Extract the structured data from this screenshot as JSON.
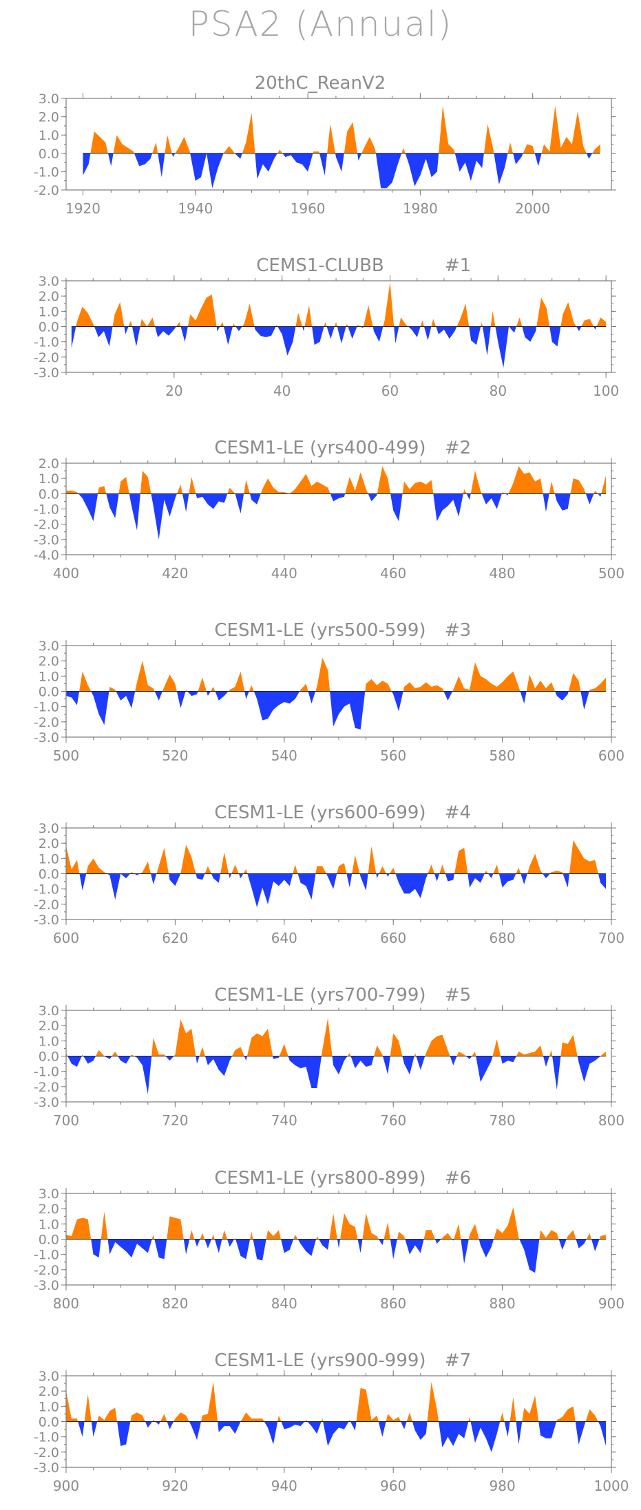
{
  "title": "PSA2 (Annual)",
  "colors": {
    "positive": "#ff8000",
    "negative": "#1e3cff",
    "axis": "#7a7a7a",
    "text": "#8c8c8c"
  },
  "chart_data": [
    {
      "type": "area",
      "title": "20thC_ReanV2",
      "x_start": 1920,
      "x_end": 2012,
      "xlim": [
        1917,
        2014
      ],
      "ylim": [
        -2.0,
        3.0
      ],
      "xticks": [
        1920,
        1940,
        1960,
        1980,
        2000
      ],
      "yticks": [
        "3.0",
        "2.0",
        "1.0",
        "0.0",
        "-1.0",
        "-2.0"
      ],
      "values": [
        -1.2,
        -0.6,
        1.2,
        0.9,
        0.6,
        -0.7,
        1.0,
        0.5,
        0.3,
        0.1,
        -0.7,
        -0.6,
        -0.3,
        0.6,
        -1.3,
        1.0,
        -0.2,
        0.3,
        0.9,
        0.1,
        -1.5,
        -1.3,
        0.0,
        -1.9,
        -0.8,
        0.0,
        0.4,
        0.0,
        -0.3,
        0.6,
        2.2,
        -1.4,
        -0.6,
        -1.0,
        -0.3,
        0.2,
        -0.2,
        -0.1,
        -0.5,
        -0.6,
        -1.0,
        0.1,
        0.1,
        -1.2,
        1.6,
        -0.2,
        -1.0,
        1.2,
        1.7,
        -0.4,
        0.3,
        0.9,
        0.2,
        -1.9,
        -1.9,
        -1.6,
        -0.6,
        0.3,
        -0.6,
        -1.8,
        -1.2,
        -0.3,
        -1.3,
        -1.0,
        2.6,
        0.5,
        0.2,
        -1.0,
        -0.5,
        -1.5,
        -0.4,
        -0.8,
        1.6,
        0.2,
        -1.7,
        -0.8,
        0.6,
        -0.6,
        -0.2,
        0.5,
        0.4,
        -0.7,
        0.5,
        0.1,
        2.6,
        0.3,
        0.9,
        0.5,
        2.3,
        0.4,
        -0.3,
        0.2,
        0.5
      ]
    },
    {
      "type": "area",
      "title": "CEMS1-CLUBB",
      "run_label": "#1",
      "x_start": 1,
      "x_end": 100,
      "xlim": [
        0,
        101
      ],
      "ylim": [
        -3.0,
        3.0
      ],
      "xticks": [
        20,
        40,
        60,
        80,
        100
      ],
      "yticks": [
        "3.0",
        "2.0",
        "1.0",
        "0.0",
        "-1.0",
        "-2.0",
        "-3.0"
      ],
      "values": [
        -1.4,
        0.3,
        1.3,
        0.9,
        0.2,
        -0.7,
        -0.3,
        -1.3,
        0.8,
        1.6,
        -0.5,
        0.4,
        -1.3,
        0.5,
        0.0,
        0.6,
        -0.7,
        -0.3,
        -0.6,
        -0.2,
        0.3,
        -1.0,
        0.8,
        0.4,
        1.2,
        1.9,
        2.1,
        -0.3,
        0.3,
        -1.2,
        0.2,
        -0.3,
        0.2,
        1.5,
        -0.2,
        -0.6,
        -0.7,
        -0.6,
        0.1,
        -0.5,
        -1.9,
        -1.0,
        0.9,
        -0.3,
        1.4,
        -1.2,
        -1.0,
        0.3,
        -0.8,
        0.3,
        -1.1,
        0.2,
        -0.8,
        0.1,
        -0.1,
        1.4,
        -0.3,
        -1.0,
        0.4,
        2.9,
        -1.1,
        0.6,
        0.1,
        -0.2,
        -0.7,
        0.4,
        -0.9,
        0.5,
        -0.5,
        -0.2,
        -0.8,
        -0.3,
        0.5,
        1.5,
        -0.9,
        -1.2,
        0.3,
        -1.9,
        1.0,
        -1.0,
        -2.7,
        0.0,
        -0.4,
        0.6,
        -0.7,
        -1.0,
        -0.3,
        1.9,
        1.2,
        -1.0,
        -1.3,
        0.8,
        1.6,
        0.3,
        -0.3,
        0.4,
        0.5,
        -0.2,
        0.6,
        0.3
      ]
    },
    {
      "type": "area",
      "title": "CESM1-LE (yrs400-499)",
      "run_label": "#2",
      "x_start": 400,
      "x_end": 499,
      "xlim": [
        400,
        500
      ],
      "ylim": [
        -4.0,
        2.0
      ],
      "xticks": [
        400,
        420,
        440,
        460,
        480,
        500
      ],
      "yticks": [
        "2.0",
        "1.0",
        "0.0",
        "-1.0",
        "-2.0",
        "-3.0",
        "-4.0"
      ],
      "values": [
        0.2,
        0.2,
        0.1,
        -0.3,
        -1.0,
        -1.8,
        0.4,
        0.5,
        -0.9,
        -1.6,
        0.8,
        1.1,
        -0.8,
        -2.4,
        1.5,
        1.1,
        -0.8,
        -3.0,
        -0.4,
        -1.5,
        -0.3,
        0.6,
        -1.2,
        1.1,
        -0.3,
        -0.2,
        -0.7,
        -1.0,
        -0.5,
        -0.6,
        0.4,
        0.0,
        -1.3,
        0.9,
        -0.4,
        -0.7,
        0.3,
        1.0,
        0.4,
        0.1,
        0.1,
        0.0,
        0.3,
        0.8,
        1.3,
        0.5,
        0.8,
        0.6,
        0.4,
        -0.5,
        -0.3,
        -0.2,
        1.1,
        0.2,
        1.4,
        0.3,
        -0.5,
        -0.1,
        1.8,
        1.0,
        -1.1,
        -1.8,
        0.8,
        0.3,
        0.7,
        0.8,
        0.6,
        0.9,
        -1.8,
        -1.1,
        -0.8,
        -0.4,
        -1.5,
        0.3,
        -0.4,
        1.5,
        0.2,
        -0.7,
        -0.3,
        -1.0,
        0.1,
        -0.1,
        0.7,
        1.8,
        1.3,
        1.4,
        0.8,
        1.0,
        -1.2,
        0.8,
        -0.5,
        -1.1,
        -1.0,
        1.0,
        0.9,
        0.3,
        -0.7,
        0.2,
        -0.2,
        1.2
      ]
    },
    {
      "type": "area",
      "title": "CESM1-LE (yrs500-599)",
      "run_label": "#3",
      "x_start": 500,
      "x_end": 599,
      "xlim": [
        500,
        600
      ],
      "ylim": [
        -3.0,
        3.0
      ],
      "xticks": [
        500,
        520,
        540,
        560,
        580,
        600
      ],
      "yticks": [
        "3.0",
        "2.0",
        "1.0",
        "0.0",
        "-1.0",
        "-2.0",
        "-3.0"
      ],
      "values": [
        -0.3,
        -0.4,
        -0.9,
        1.3,
        0.4,
        -0.3,
        -1.5,
        -2.2,
        0.3,
        0.1,
        -0.6,
        -0.3,
        -1.1,
        0.6,
        2.0,
        0.4,
        0.2,
        -0.6,
        0.3,
        1.1,
        0.5,
        -1.1,
        0.1,
        -0.3,
        -0.2,
        0.9,
        -0.3,
        0.3,
        -0.6,
        -0.3,
        0.1,
        0.3,
        1.3,
        -0.5,
        0.4,
        -0.5,
        -1.9,
        -1.8,
        -1.2,
        -0.9,
        -0.7,
        -0.8,
        -0.5,
        0.1,
        0.5,
        -0.8,
        0.3,
        2.2,
        1.4,
        -2.3,
        -1.5,
        -1.0,
        -0.8,
        -2.4,
        -2.5,
        0.5,
        0.8,
        0.4,
        0.7,
        0.5,
        -0.2,
        -1.3,
        0.3,
        0.6,
        0.2,
        0.3,
        0.6,
        0.3,
        0.4,
        0.2,
        -0.6,
        0.1,
        1.0,
        0.2,
        0.1,
        1.9,
        1.0,
        0.8,
        0.5,
        0.3,
        0.6,
        1.0,
        1.3,
        0.3,
        -0.8,
        1.1,
        0.2,
        0.7,
        0.2,
        0.6,
        -0.3,
        -0.6,
        -0.2,
        1.2,
        0.7,
        -1.2,
        0.1,
        0.2,
        0.5,
        0.9
      ]
    },
    {
      "type": "area",
      "title": "CESM1-LE (yrs600-699)",
      "run_label": "#4",
      "x_start": 600,
      "x_end": 699,
      "xlim": [
        600,
        700
      ],
      "ylim": [
        -3.0,
        3.0
      ],
      "xticks": [
        600,
        620,
        640,
        660,
        680,
        700
      ],
      "yticks": [
        "3.0",
        "2.0",
        "1.0",
        "0.0",
        "-1.0",
        "-2.0",
        "-3.0"
      ],
      "values": [
        1.8,
        0.3,
        0.9,
        -1.1,
        0.5,
        1.0,
        0.4,
        0.1,
        -0.1,
        -1.7,
        0.0,
        -0.3,
        0.1,
        -0.1,
        0.1,
        0.8,
        -0.7,
        0.5,
        1.7,
        -0.4,
        -0.8,
        0.0,
        1.9,
        1.1,
        -0.3,
        -0.4,
        0.5,
        -0.3,
        -0.6,
        1.4,
        -0.3,
        0.6,
        -0.3,
        0.3,
        -0.9,
        -2.2,
        -0.9,
        -2.0,
        -0.5,
        -0.8,
        -0.4,
        -0.8,
        0.6,
        -0.6,
        -0.8,
        -1.7,
        0.5,
        0.5,
        -0.2,
        -1.0,
        0.5,
        0.7,
        -0.9,
        1.2,
        -0.2,
        -1.1,
        1.8,
        -0.3,
        0.5,
        -0.2,
        0.4,
        -0.6,
        -1.3,
        -1.3,
        -1.0,
        -1.6,
        -0.3,
        0.6,
        -0.5,
        0.6,
        -0.5,
        -0.4,
        1.5,
        1.7,
        -0.9,
        -0.3,
        -0.6,
        0.2,
        -0.3,
        0.6,
        -0.9,
        -0.5,
        -0.4,
        0.4,
        -0.7,
        0.5,
        1.3,
        0.2,
        -0.3,
        0.1,
        0.2,
        0.1,
        -0.9,
        2.2,
        1.6,
        1.0,
        0.8,
        0.9,
        -0.6,
        -1.0
      ]
    },
    {
      "type": "area",
      "title": "CESM1-LE (yrs700-799)",
      "run_label": "#5",
      "x_start": 700,
      "x_end": 799,
      "xlim": [
        700,
        800
      ],
      "ylim": [
        -3.0,
        3.0
      ],
      "xticks": [
        700,
        720,
        740,
        760,
        780,
        800
      ],
      "yticks": [
        "3.0",
        "2.0",
        "1.0",
        "0.0",
        "-1.0",
        "-2.0",
        "-3.0"
      ],
      "values": [
        0.2,
        -0.5,
        -0.7,
        0.1,
        -0.5,
        -0.3,
        0.4,
        0.0,
        -0.2,
        0.3,
        -0.3,
        -0.5,
        0.1,
        -0.1,
        -0.6,
        -2.5,
        1.2,
        0.1,
        0.1,
        -0.3,
        0.1,
        2.4,
        1.5,
        1.8,
        -0.5,
        0.6,
        -0.6,
        -0.2,
        -0.9,
        -1.3,
        -0.3,
        0.4,
        0.6,
        -0.3,
        1.2,
        1.5,
        1.3,
        1.8,
        -0.2,
        -0.1,
        0.8,
        -0.3,
        -0.6,
        -0.8,
        -0.7,
        -2.1,
        -2.1,
        0.4,
        2.5,
        -0.6,
        -1.2,
        -0.3,
        0.2,
        -0.8,
        -0.3,
        -0.7,
        -0.6,
        0.7,
        0.1,
        -1.2,
        1.5,
        1.0,
        -0.5,
        -1.2,
        0.2,
        -0.9,
        0.2,
        1.0,
        1.3,
        1.4,
        0.4,
        -0.6,
        0.3,
        0.1,
        -0.2,
        0.3,
        -1.7,
        -1.0,
        -0.3,
        1.1,
        -0.5,
        -0.3,
        -0.4,
        0.3,
        0.1,
        0.2,
        0.3,
        0.7,
        -0.7,
        0.4,
        -2.2,
        0.9,
        0.8,
        1.4,
        -0.4,
        -1.7,
        -0.5,
        -0.3,
        0.0,
        0.3
      ]
    },
    {
      "type": "area",
      "title": "CESM1-LE (yrs800-899)",
      "run_label": "#6",
      "x_start": 800,
      "x_end": 899,
      "xlim": [
        800,
        900
      ],
      "ylim": [
        -3.0,
        3.0
      ],
      "xticks": [
        800,
        820,
        840,
        860,
        880,
        900
      ],
      "yticks": [
        "3.0",
        "2.0",
        "1.0",
        "0.0",
        "-1.0",
        "-2.0",
        "-3.0"
      ],
      "values": [
        0.3,
        0.2,
        1.3,
        1.4,
        1.3,
        -1.0,
        -1.2,
        1.8,
        -1.0,
        -0.2,
        -0.5,
        -0.8,
        -1.2,
        -0.3,
        -0.6,
        -0.9,
        0.3,
        -1.2,
        -1.3,
        1.5,
        1.4,
        1.3,
        -1.0,
        0.6,
        -0.5,
        0.4,
        -0.6,
        0.3,
        -0.9,
        0.6,
        -0.5,
        0.1,
        -1.1,
        -1.3,
        0.5,
        -1.3,
        -1.4,
        0.6,
        0.2,
        0.6,
        -0.9,
        -0.7,
        0.3,
        -0.3,
        -0.8,
        -1.1,
        0.2,
        -0.4,
        -0.7,
        1.7,
        -0.6,
        1.7,
        1.0,
        0.8,
        -0.9,
        1.7,
        0.4,
        0.2,
        -0.4,
        1.1,
        -1.3,
        0.5,
        0.2,
        -1.0,
        -0.4,
        -0.9,
        0.6,
        0.6,
        -0.3,
        0.1,
        0.4,
        -0.1,
        1.0,
        -1.6,
        0.3,
        1.0,
        -0.4,
        -1.2,
        -0.5,
        0.7,
        0.4,
        0.9,
        2.1,
        0.1,
        -0.7,
        -2.0,
        -2.2,
        0.6,
        0.1,
        0.6,
        0.4,
        -0.7,
        0.2,
        0.6,
        -0.6,
        -0.3,
        0.4,
        -0.8,
        0.2,
        0.3
      ]
    },
    {
      "type": "area",
      "title": "CESM1-LE (yrs900-999)",
      "run_label": "#7",
      "x_start": 900,
      "x_end": 999,
      "xlim": [
        900,
        1000
      ],
      "ylim": [
        -3.0,
        3.0
      ],
      "xticks": [
        900,
        920,
        940,
        960,
        980,
        1000
      ],
      "yticks": [
        "3.0",
        "2.0",
        "1.0",
        "0.0",
        "-1.0",
        "-2.0",
        "-3.0"
      ],
      "values": [
        2.0,
        0.2,
        0.2,
        -1.0,
        1.8,
        -1.0,
        0.4,
        0.1,
        0.7,
        0.9,
        -1.6,
        -1.5,
        0.4,
        0.6,
        0.4,
        -0.4,
        0.1,
        -0.2,
        0.5,
        -0.5,
        0.2,
        0.6,
        0.4,
        -0.3,
        -1.2,
        0.4,
        0.5,
        2.6,
        -0.7,
        -0.3,
        -0.3,
        -0.8,
        0.0,
        0.6,
        0.2,
        0.2,
        0.2,
        -0.4,
        -1.5,
        0.4,
        -0.5,
        -0.4,
        -0.2,
        -0.3,
        0.1,
        -0.3,
        -0.8,
        0.2,
        -1.6,
        -0.8,
        -0.4,
        -0.5,
        0.1,
        -0.6,
        2.2,
        2.1,
        0.1,
        0.4,
        -1.0,
        0.5,
        0.1,
        0.3,
        -0.5,
        0.6,
        -0.6,
        -1.2,
        -0.8,
        2.6,
        0.8,
        -1.7,
        -1.0,
        -1.6,
        -0.8,
        -1.1,
        0.3,
        -1.4,
        -0.4,
        -1.1,
        -2.0,
        -0.8,
        0.6,
        -1.0,
        1.6,
        -1.5,
        0.9,
        0.5,
        1.7,
        -0.9,
        -1.1,
        -1.1,
        0.1,
        0.3,
        0.8,
        1.0,
        -1.5,
        -0.3,
        0.8,
        0.4,
        -0.3,
        -1.6
      ]
    }
  ]
}
